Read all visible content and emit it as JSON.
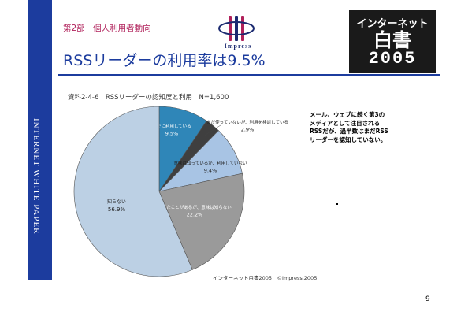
{
  "header": {
    "chapter": "第2部　個人利用者動向",
    "side_label": "INTERNET WHITE PAPER",
    "logo_text": "Impress",
    "brand": {
      "line1": "インターネット",
      "line2": "白書",
      "line3": "2005"
    },
    "title": "RSSリーダーの利用率は9.5%"
  },
  "figure": {
    "caption": "資料2-4-6　RSSリーダーの認知度と利用　N=1,600",
    "source": "インターネット白書2005　©Impress,2005"
  },
  "note": "メール、ウェブに続く第3のメディアとして注目されるRSSだが、過半数はまだRSSリーダーを認知していない。",
  "page": {
    "number": "9"
  },
  "colors": {
    "accent": "#1c3c9e",
    "chapter": "#b0205a"
  },
  "chart_data": {
    "type": "pie",
    "title": "資料2-4-6　RSSリーダーの認知度と利用　N=1,600",
    "slices": [
      {
        "label": "すでに利用している",
        "value": 9.5,
        "value_label": "9.5%",
        "color": "#2f86b8"
      },
      {
        "label": "まだ使っていないが、利用を検討している",
        "value": 2.9,
        "value_label": "2.9%",
        "color": "#3f3f3f"
      },
      {
        "label": "意味は知っているが、利用していない",
        "value": 9.4,
        "value_label": "9.4%",
        "color": "#a8c4e4"
      },
      {
        "label": "聞いたことがあるが、意味は知らない",
        "value": 22.2,
        "value_label": "22.2%",
        "color": "#9a9a9a"
      },
      {
        "label": "知らない",
        "value": 56.9,
        "value_label": "56.9%",
        "color": "#bcd0e4"
      }
    ]
  }
}
